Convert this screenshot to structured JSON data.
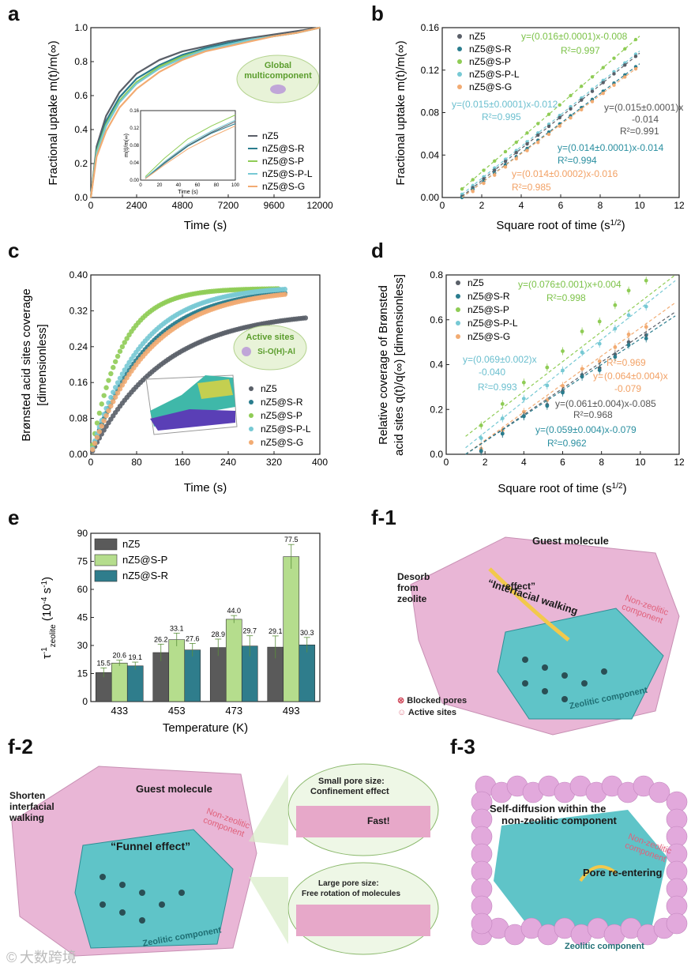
{
  "panels": {
    "a": "a",
    "b": "b",
    "c": "c",
    "d": "d",
    "e": "e",
    "f1": "f-1",
    "f2": "f-2",
    "f3": "f-3"
  },
  "colors": {
    "nZ5": "#5a5f68",
    "nZ5@S-R": "#2a7d8e",
    "nZ5@S-P": "#8fcc55",
    "nZ5@S-P-L": "#77c9d4",
    "nZ5@S-G": "#f2ab72"
  },
  "chart_data": [
    {
      "id": "a",
      "type": "line",
      "xlabel": "Time (s)",
      "ylabel": "Fractional uptake m(t)/m(∞)",
      "xlim": [
        0,
        12000
      ],
      "ylim": [
        0,
        1.0
      ],
      "xticks": [
        "0",
        "2400",
        "4800",
        "7200",
        "9600",
        "12000"
      ],
      "yticks": [
        "0.0",
        "0.2",
        "0.4",
        "0.6",
        "0.8",
        "1.0"
      ],
      "legend": [
        "nZ5",
        "nZ5@S-R",
        "nZ5@S-P",
        "nZ5@S-P-L",
        "nZ5@S-G"
      ],
      "badge": {
        "title": "Global",
        "subtitle": "multicomponent"
      },
      "series": [
        {
          "name": "nZ5",
          "x": [
            0,
            300,
            800,
            1500,
            2400,
            3600,
            4800,
            6000,
            7200,
            8400,
            9600,
            10800,
            12000
          ],
          "y": [
            0,
            0.3,
            0.48,
            0.62,
            0.73,
            0.81,
            0.86,
            0.89,
            0.92,
            0.94,
            0.96,
            0.98,
            1.0
          ]
        },
        {
          "name": "nZ5@S-R",
          "x": [
            0,
            300,
            800,
            1500,
            2400,
            3600,
            4800,
            6000,
            7200,
            8400,
            9600,
            10800,
            12000
          ],
          "y": [
            0,
            0.28,
            0.45,
            0.59,
            0.7,
            0.78,
            0.84,
            0.88,
            0.91,
            0.93,
            0.95,
            0.97,
            1.0
          ]
        },
        {
          "name": "nZ5@S-P",
          "x": [
            0,
            300,
            800,
            1500,
            2400,
            3600,
            4800,
            6000,
            7200,
            8400,
            9600,
            10800,
            12000
          ],
          "y": [
            0,
            0.27,
            0.43,
            0.57,
            0.68,
            0.77,
            0.83,
            0.87,
            0.9,
            0.93,
            0.95,
            0.97,
            1.0
          ]
        },
        {
          "name": "nZ5@S-P-L",
          "x": [
            0,
            300,
            800,
            1500,
            2400,
            3600,
            4800,
            6000,
            7200,
            8400,
            9600,
            10800,
            12000
          ],
          "y": [
            0,
            0.26,
            0.42,
            0.56,
            0.67,
            0.76,
            0.82,
            0.87,
            0.9,
            0.93,
            0.95,
            0.97,
            1.0
          ]
        },
        {
          "name": "nZ5@S-G",
          "x": [
            0,
            300,
            800,
            1500,
            2400,
            3600,
            4800,
            6000,
            7200,
            8400,
            9600,
            10800,
            12000
          ],
          "y": [
            0,
            0.24,
            0.39,
            0.53,
            0.64,
            0.74,
            0.81,
            0.86,
            0.89,
            0.92,
            0.95,
            0.97,
            1.0
          ]
        }
      ],
      "inset": {
        "xlabel": "Time (s)",
        "ylabel": "m(t)/m(∞)",
        "xlim": [
          0,
          100
        ],
        "ylim": [
          0,
          0.16
        ],
        "xticks": [
          "0",
          "20",
          "40",
          "60",
          "80",
          "100"
        ],
        "yticks": [
          "0.00",
          "0.04",
          "0.08",
          "0.12",
          "0.16"
        ],
        "series": [
          {
            "name": "nZ5",
            "x": [
              5,
              25,
              50,
              75,
              100
            ],
            "y": [
              0.005,
              0.04,
              0.08,
              0.11,
              0.135
            ]
          },
          {
            "name": "nZ5@S-R",
            "x": [
              5,
              25,
              50,
              75,
              100
            ],
            "y": [
              0.004,
              0.038,
              0.078,
              0.108,
              0.13
            ]
          },
          {
            "name": "nZ5@S-P",
            "x": [
              5,
              25,
              50,
              75,
              100
            ],
            "y": [
              0.008,
              0.05,
              0.095,
              0.125,
              0.15
            ]
          },
          {
            "name": "nZ5@S-P-L",
            "x": [
              5,
              25,
              50,
              75,
              100
            ],
            "y": [
              0.005,
              0.042,
              0.083,
              0.113,
              0.138
            ]
          },
          {
            "name": "nZ5@S-G",
            "x": [
              5,
              25,
              50,
              75,
              100
            ],
            "y": [
              0.003,
              0.035,
              0.072,
              0.1,
              0.125
            ]
          }
        ]
      }
    },
    {
      "id": "b",
      "type": "scatter",
      "xlabel": "Square root of time (s",
      "xlabel_sup": "1/2",
      "xlabel_end": ")",
      "ylabel": "Fractional uptake m(t)/m(∞)",
      "xlim": [
        0,
        12
      ],
      "ylim": [
        0,
        0.16
      ],
      "xticks": [
        "0",
        "2",
        "4",
        "6",
        "8",
        "10",
        "12"
      ],
      "yticks": [
        "0.00",
        "0.04",
        "0.08",
        "0.12",
        "0.16"
      ],
      "legend": [
        "nZ5",
        "nZ5@S-R",
        "nZ5@S-P",
        "nZ5@S-P-L",
        "nZ5@S-G"
      ],
      "fits": [
        {
          "name": "nZ5@S-P",
          "slope": 0.016,
          "intercept": -0.008,
          "equation": "y=(0.016±0.0001)x-0.008",
          "r2": "R²=0.997"
        },
        {
          "name": "nZ5@S-P-L",
          "slope": 0.015,
          "intercept": -0.012,
          "equation": "y=(0.015±0.0001)x-0.012",
          "r2": "R²=0.995"
        },
        {
          "name": "nZ5",
          "slope": 0.015,
          "intercept": -0.014,
          "equation": "y=(0.015±0.0001)x",
          "equation2": "-0.014",
          "r2": "R²=0.991"
        },
        {
          "name": "nZ5@S-R",
          "slope": 0.014,
          "intercept": -0.014,
          "equation": "y=(0.014±0.0001)x-0.014",
          "r2": "R²=0.994"
        },
        {
          "name": "nZ5@S-G",
          "slope": 0.014,
          "intercept": -0.016,
          "equation": "y=(0.014±0.0002)x-0.016",
          "r2": "R²=0.985"
        }
      ],
      "x_range": [
        1,
        10
      ]
    },
    {
      "id": "c",
      "type": "scatter",
      "xlabel": "Time (s)",
      "ylabel": "Brønsted acid sites coverage",
      "ylabel2": "[dimensionless]",
      "xlim": [
        0,
        400
      ],
      "ylim": [
        0,
        0.4
      ],
      "xticks": [
        "0",
        "80",
        "160",
        "240",
        "320",
        "400"
      ],
      "yticks": [
        "0.00",
        "0.08",
        "0.16",
        "0.24",
        "0.32",
        "0.40"
      ],
      "legend": [
        "nZ5",
        "nZ5@S-R",
        "nZ5@S-P",
        "nZ5@S-P-L",
        "nZ5@S-G"
      ],
      "badge": {
        "title": "Active sites",
        "subtitle": "Si-O(H)-Al"
      },
      "series": [
        {
          "name": "nZ5",
          "end_x": 375,
          "plateau": 0.32,
          "k": 0.008
        },
        {
          "name": "nZ5@S-R",
          "end_x": 340,
          "plateau": 0.37,
          "k": 0.0105
        },
        {
          "name": "nZ5@S-P",
          "end_x": 330,
          "plateau": 0.37,
          "k": 0.019
        },
        {
          "name": "nZ5@S-P-L",
          "end_x": 340,
          "plateau": 0.375,
          "k": 0.0118
        },
        {
          "name": "nZ5@S-G",
          "end_x": 340,
          "plateau": 0.37,
          "k": 0.0098
        }
      ]
    },
    {
      "id": "d",
      "type": "scatter",
      "xlabel": "Square root of time (s",
      "xlabel_sup": "1/2",
      "xlabel_end": ")",
      "ylabel": "Relative coverage of Brønsted",
      "ylabel2": "acid sites q(t)/q(∞) [dimensionless]",
      "xlim": [
        0,
        12
      ],
      "ylim": [
        0,
        0.8
      ],
      "xticks": [
        "0",
        "2",
        "4",
        "6",
        "8",
        "10",
        "12"
      ],
      "yticks": [
        "0.0",
        "0.2",
        "0.4",
        "0.6",
        "0.8"
      ],
      "legend": [
        "nZ5",
        "nZ5@S-R",
        "nZ5@S-P",
        "nZ5@S-P-L",
        "nZ5@S-G"
      ],
      "fits": [
        {
          "name": "nZ5@S-P",
          "slope": 0.076,
          "intercept": 0.004,
          "equation": "y=(0.076±0.001)x+0.004",
          "r2": "R²=0.998"
        },
        {
          "name": "nZ5@S-P-L",
          "slope": 0.069,
          "intercept": -0.04,
          "equation": "y=(0.069±0.002)x",
          "equation2": "-0.040",
          "r2": "R²=0.993"
        },
        {
          "name": "nZ5@S-G",
          "slope": 0.064,
          "intercept": -0.079,
          "equation": "(0.064±0.004)x",
          "equation2": "-0.079",
          "r2": "R²=0.969",
          "prefix": "y="
        },
        {
          "name": "nZ5",
          "slope": 0.061,
          "intercept": -0.085,
          "equation": "y=(0.061±0.004)x-0.085",
          "r2": "R²=0.968"
        },
        {
          "name": "nZ5@S-R",
          "slope": 0.059,
          "intercept": -0.079,
          "equation": "y=(0.059±0.004)x-0.079",
          "r2": "R²=0.962"
        }
      ],
      "x_range": [
        1,
        11.8
      ]
    },
    {
      "id": "e",
      "type": "bar",
      "xlabel": "Temperature (K)",
      "ylabel_main": "τ",
      "ylabel_sup": "-1",
      "ylabel_sub": "zeolite",
      "ylabel_unit": "(10",
      "ylabel_unit_sup": "-4",
      "ylabel_unit_end": " s",
      "ylabel_unit_sup2": "-1",
      "ylabel_close": ")",
      "categories": [
        "433",
        "453",
        "473",
        "493"
      ],
      "ylim": [
        0,
        90
      ],
      "yticks": [
        "0",
        "15",
        "30",
        "45",
        "60",
        "75",
        "90"
      ],
      "legend": [
        "nZ5",
        "nZ5@S-P",
        "nZ5@S-R"
      ],
      "series": [
        {
          "name": "nZ5",
          "values": [
            15.5,
            26.2,
            28.9,
            29.1
          ],
          "labels": [
            "15.5",
            "26.2",
            "28.9",
            "29.1"
          ],
          "err": [
            2.5,
            4.5,
            4.5,
            6.0
          ]
        },
        {
          "name": "nZ5@S-P",
          "values": [
            20.6,
            33.1,
            44.0,
            77.5
          ],
          "labels": [
            "20.6",
            "33.1",
            "44.0",
            "77.5"
          ],
          "err": [
            1.5,
            3.5,
            2.0,
            6.5
          ]
        },
        {
          "name": "nZ5@S-R",
          "values": [
            19.1,
            27.6,
            29.7,
            30.3
          ],
          "labels": [
            "19.1",
            "27.6",
            "29.7",
            "30.3"
          ],
          "err": [
            2.0,
            3.5,
            5.5,
            4.0
          ]
        }
      ]
    }
  ],
  "illustrations": {
    "f1": {
      "guest": "Guest molecule",
      "desorb": "Desorb\nfrom\nzeolite",
      "walking": "“Interfacial walking",
      "walking2": "effect”",
      "nonzeo": "Non-zeolitic\ncomponent",
      "zeo": "Zeolitic component",
      "legend_blocked": "Blocked pores",
      "legend_active": "Active sites"
    },
    "f2": {
      "shorten": "Shorten\ninterfacial\nwalking",
      "guest": "Guest molecule",
      "funnel": "“Funnel effect”",
      "nonzeo": "Non-zeolitic\ncomponent",
      "zeo": "Zeolitic component",
      "small_title": "Small pore size:",
      "small_sub": "Confinement effect",
      "fast": "Fast!",
      "large_title": "Large pore size:",
      "large_sub": "Free rotation of molecules"
    },
    "f3": {
      "self": "Self-diffusion within the",
      "self2": "non-zeolitic component",
      "nonzeo": "Non-zeolitic\ncomponent",
      "reenter": "Pore re-entering",
      "zeo": "Zeolitic component"
    }
  },
  "watermark": "© 大数跨境"
}
